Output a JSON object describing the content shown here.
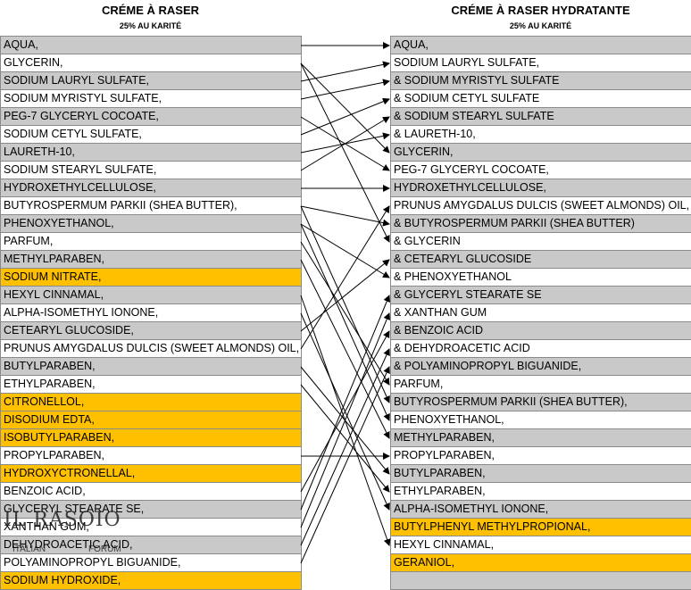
{
  "left": {
    "title": "CRÉME À RASER",
    "subtitle": "25% AU KARITÉ",
    "items": [
      {
        "text": "AQUA,",
        "color": "g"
      },
      {
        "text": "GLYCERIN,",
        "color": "w"
      },
      {
        "text": "SODIUM LAURYL SULFATE,",
        "color": "g"
      },
      {
        "text": "SODIUM MYRISTYL SULFATE,",
        "color": "w"
      },
      {
        "text": "PEG-7 GLYCERYL COCOATE,",
        "color": "g"
      },
      {
        "text": "SODIUM CETYL SULFATE,",
        "color": "w"
      },
      {
        "text": "LAURETH-10,",
        "color": "g"
      },
      {
        "text": "SODIUM STEARYL SULFATE,",
        "color": "w"
      },
      {
        "text": "HYDROXETHYLCELLULOSE,",
        "color": "g"
      },
      {
        "text": "BUTYROSPERMUM PARKII (SHEA BUTTER),",
        "color": "w"
      },
      {
        "text": "PHENOXYETHANOL,",
        "color": "g"
      },
      {
        "text": "PARFUM,",
        "color": "w"
      },
      {
        "text": "METHYLPARABEN,",
        "color": "g"
      },
      {
        "text": "SODIUM NITRATE,",
        "color": "o"
      },
      {
        "text": "HEXYL CINNAMAL,",
        "color": "g"
      },
      {
        "text": "ALPHA-ISOMETHYL IONONE,",
        "color": "w"
      },
      {
        "text": "CETEARYL GLUCOSIDE,",
        "color": "g"
      },
      {
        "text": "PRUNUS AMYGDALUS DULCIS (SWEET ALMONDS) OIL,",
        "color": "w"
      },
      {
        "text": "BUTYLPARABEN,",
        "color": "g"
      },
      {
        "text": "ETHYLPARABEN,",
        "color": "w"
      },
      {
        "text": "CITRONELLOL,",
        "color": "o"
      },
      {
        "text": "DISODIUM EDTA,",
        "color": "o"
      },
      {
        "text": "ISOBUTYLPARABEN,",
        "color": "o"
      },
      {
        "text": "PROPYLPARABEN,",
        "color": "w"
      },
      {
        "text": "HYDROXYCTRONELLAL,",
        "color": "o"
      },
      {
        "text": "BENZOIC ACID,",
        "color": "w"
      },
      {
        "text": "GLYCERYL STEARATE SE,",
        "color": "g"
      },
      {
        "text": "XANTHAN GUM,",
        "color": "w"
      },
      {
        "text": "DEHYDROACETIC ACID,",
        "color": "g"
      },
      {
        "text": "POLYAMINOPROPYL BIGUANIDE,",
        "color": "w"
      },
      {
        "text": "SODIUM HYDROXIDE,",
        "color": "o"
      }
    ]
  },
  "right": {
    "title": "CRÉME À RASER HYDRATANTE",
    "subtitle": "25% AU KARITÉ",
    "items": [
      {
        "text": "AQUA,",
        "color": "g"
      },
      {
        "text": "SODIUM LAURYL SULFATE,",
        "color": "w"
      },
      {
        "text": "&  SODIUM MYRISTYL SULFATE",
        "color": "g"
      },
      {
        "text": "&  SODIUM CETYL SULFATE",
        "color": "w"
      },
      {
        "text": "&  SODIUM STEARYL SULFATE",
        "color": "g"
      },
      {
        "text": "&  LAURETH-10,",
        "color": "w"
      },
      {
        "text": "GLYCERIN,",
        "color": "g"
      },
      {
        "text": "PEG-7 GLYCERYL COCOATE,",
        "color": "w"
      },
      {
        "text": "HYDROXETHYLCELLULOSE,",
        "color": "g"
      },
      {
        "text": "PRUNUS AMYGDALUS DULCIS (SWEET ALMONDS) OIL,",
        "color": "w"
      },
      {
        "text": "&  BUTYROSPERMUM PARKII (SHEA BUTTER)",
        "color": "g"
      },
      {
        "text": "&  GLYCERIN",
        "color": "w"
      },
      {
        "text": "&  CETEARYL GLUCOSIDE",
        "color": "g"
      },
      {
        "text": "&  PHENOXYETHANOL",
        "color": "w"
      },
      {
        "text": "&  GLYCERYL STEARATE SE",
        "color": "g"
      },
      {
        "text": "&  XANTHAN GUM",
        "color": "w"
      },
      {
        "text": "&  BENZOIC ACID",
        "color": "g"
      },
      {
        "text": "&  DEHYDROACETIC ACID",
        "color": "w"
      },
      {
        "text": "&  POLYAMINOPROPYL BIGUANIDE,",
        "color": "g"
      },
      {
        "text": "PARFUM,",
        "color": "w"
      },
      {
        "text": "BUTYROSPERMUM PARKII (SHEA BUTTER),",
        "color": "g"
      },
      {
        "text": "PHENOXYETHANOL,",
        "color": "w"
      },
      {
        "text": "METHYLPARABEN,",
        "color": "g"
      },
      {
        "text": "PROPYLPARABEN,",
        "color": "w"
      },
      {
        "text": "BUTYLPARABEN,",
        "color": "g"
      },
      {
        "text": "ETHYLPARABEN,",
        "color": "w"
      },
      {
        "text": "ALPHA-ISOMETHYL IONONE,",
        "color": "g"
      },
      {
        "text": "BUTYLPHENYL METHYLPROPIONAL,",
        "color": "o"
      },
      {
        "text": "HEXYL CINNAMAL,",
        "color": "w"
      },
      {
        "text": "GERANIOL,",
        "color": "o"
      },
      {
        "text": "",
        "color": "g"
      }
    ]
  },
  "links": [
    [
      0,
      0
    ],
    [
      1,
      6
    ],
    [
      1,
      11
    ],
    [
      2,
      1
    ],
    [
      3,
      2
    ],
    [
      4,
      7
    ],
    [
      5,
      3
    ],
    [
      6,
      5
    ],
    [
      7,
      4
    ],
    [
      8,
      8
    ],
    [
      9,
      10
    ],
    [
      9,
      20
    ],
    [
      10,
      13
    ],
    [
      10,
      21
    ],
    [
      11,
      19
    ],
    [
      12,
      22
    ],
    [
      14,
      28
    ],
    [
      15,
      26
    ],
    [
      16,
      12
    ],
    [
      17,
      9
    ],
    [
      18,
      24
    ],
    [
      19,
      25
    ],
    [
      23,
      23
    ],
    [
      25,
      16
    ],
    [
      26,
      14
    ],
    [
      27,
      15
    ],
    [
      28,
      17
    ],
    [
      29,
      18
    ]
  ],
  "watermark": {
    "brand": "IL RASOIO",
    "sub_left": "ITALIAN",
    "sub_right": "FORUM"
  }
}
